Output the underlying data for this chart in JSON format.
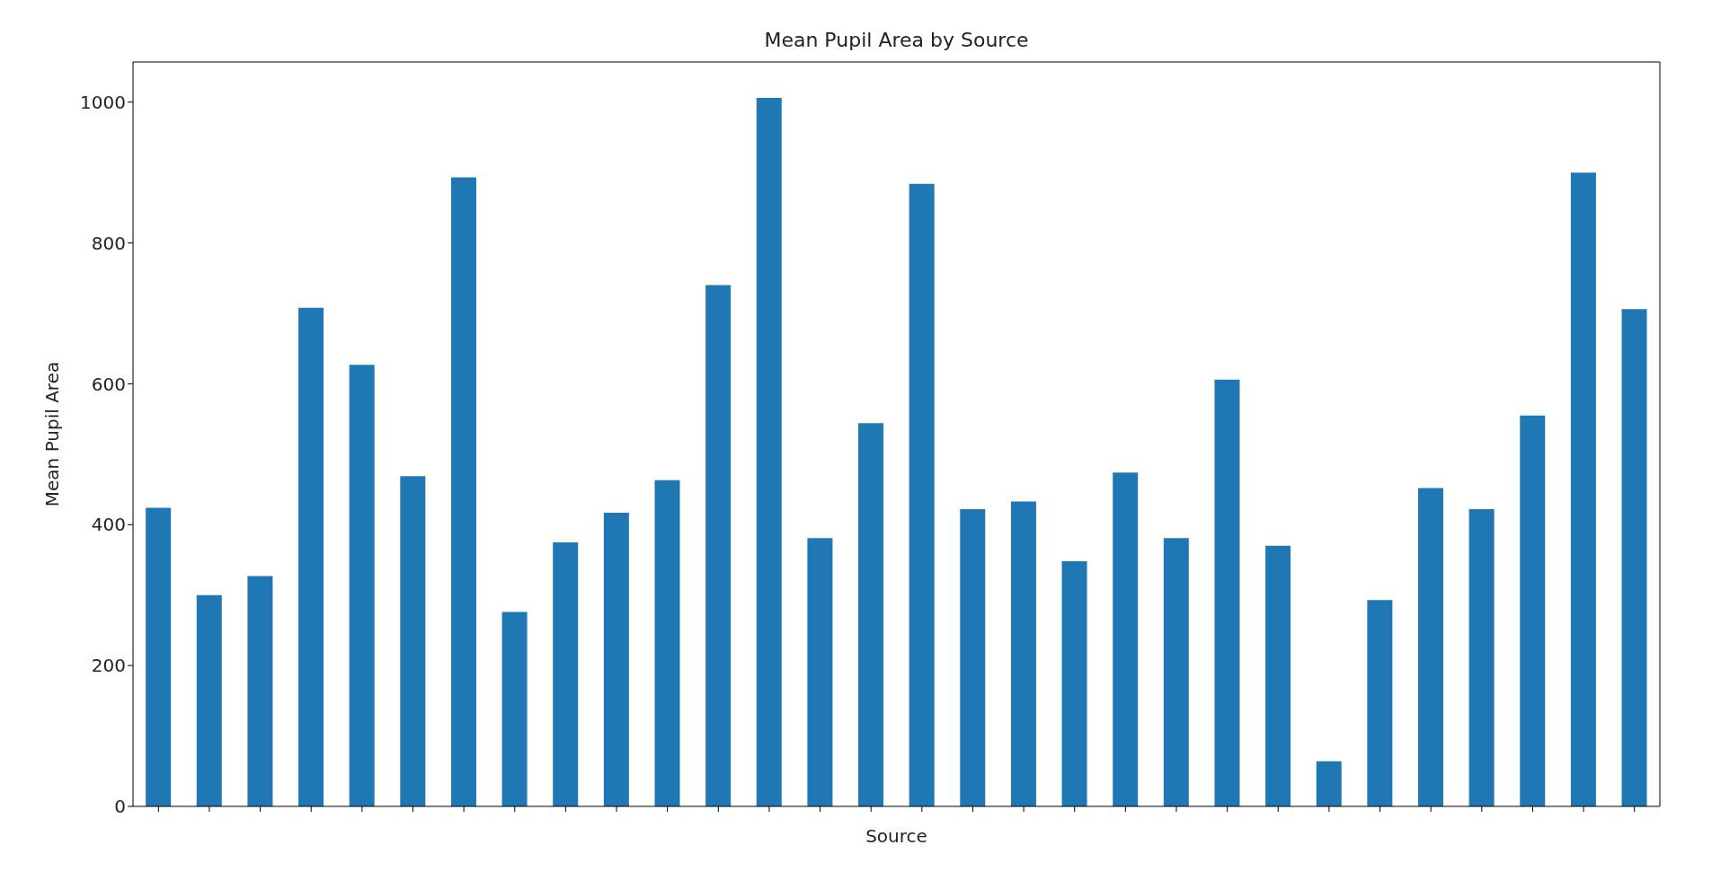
{
  "chart_data": {
    "type": "bar",
    "title": "Mean Pupil Area by Source",
    "xlabel": "Source",
    "ylabel": "Mean Pupil Area",
    "categories": [
      null,
      null,
      null,
      null,
      null,
      null,
      null,
      null,
      null,
      null,
      null,
      null,
      null,
      null,
      null,
      null,
      null,
      null,
      null,
      null,
      null,
      null,
      null,
      null,
      null,
      null,
      null,
      null,
      null,
      null
    ],
    "values": [
      424,
      300,
      327,
      708,
      627,
      469,
      893,
      276,
      375,
      417,
      463,
      740,
      1006,
      381,
      544,
      884,
      422,
      433,
      348,
      474,
      381,
      606,
      370,
      64,
      293,
      452,
      422,
      555,
      900,
      706
    ],
    "color": "#1f77b4",
    "ylim": [
      0,
      1057
    ],
    "yticks": [
      0,
      200,
      400,
      600,
      800,
      1000
    ]
  }
}
